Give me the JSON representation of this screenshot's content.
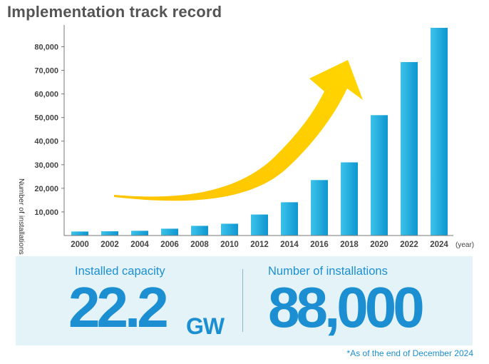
{
  "title": "Implementation track record",
  "chart_data": {
    "type": "bar",
    "ylabel": "Number of installations (cases)",
    "xunit": "(year)",
    "categories": [
      "2000",
      "2002",
      "2004",
      "2006",
      "2008",
      "2010",
      "2012",
      "2014",
      "2016",
      "2018",
      "2020",
      "2022",
      "2024"
    ],
    "values": [
      1700,
      1800,
      2000,
      2900,
      4100,
      5000,
      8900,
      14100,
      23500,
      31000,
      51000,
      73500,
      88000
    ],
    "ylim": [
      0,
      88000
    ],
    "yticks": [
      10000,
      20000,
      30000,
      40000,
      50000,
      60000,
      70000,
      80000
    ],
    "ytick_labels": [
      "10,000",
      "20,000",
      "30,000",
      "40,000",
      "50,000",
      "60,000",
      "70,000",
      "80,000"
    ],
    "grid": false,
    "colors": {
      "bar_light": "#3cc3ea",
      "bar_dark": "#0e96d0",
      "arrow": "#ffd400"
    }
  },
  "stats": {
    "capacity_label": "Installed capacity",
    "capacity_value": "22.2",
    "capacity_unit": "GW",
    "installations_label": "Number of installations",
    "installations_value": "88,000"
  },
  "footnote": "*As of the end of December 2024"
}
